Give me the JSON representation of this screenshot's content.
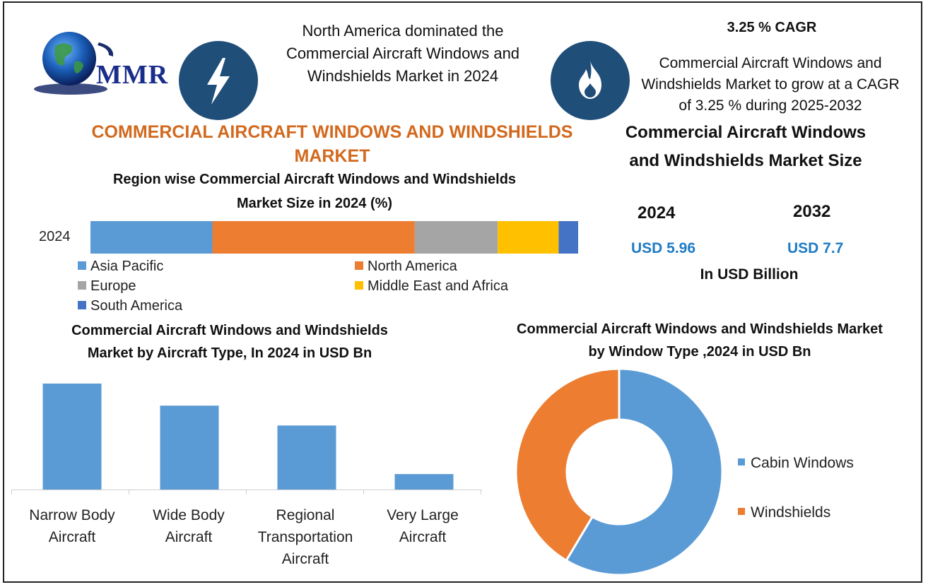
{
  "logo": {
    "text": "MMR",
    "icon": "globe-icon"
  },
  "header": {
    "headline": "North America dominated the Commercial Aircraft Windows and Windshields Market in 2024",
    "bolt_icon": "lightning-bolt-icon",
    "flame_icon": "flame-icon",
    "cagr_title": "3.25 % CAGR",
    "cagr_text": "Commercial Aircraft Windows and Windshields Market to grow at a CAGR of 3.25 % during 2025-2032"
  },
  "main_title": "COMMERCIAL AIRCRAFT WINDOWS AND WINDSHIELDS MARKET",
  "market_size": {
    "title": "Commercial Aircraft Windows and Windshields Market Size",
    "year_a": "2024",
    "year_b": "2032",
    "value_a": "USD 5.96",
    "value_b": "USD 7.7",
    "unit": "In USD Billion"
  },
  "colors": {
    "asia_pacific": "#5b9bd5",
    "north_america": "#ed7d31",
    "europe": "#a5a5a5",
    "mea": "#ffc000",
    "south_america": "#4472c4",
    "bars": "#5b9bd5",
    "cabin": "#5b9bd5",
    "windshields": "#ed7d31"
  },
  "chart_data": [
    {
      "type": "bar",
      "stacked": true,
      "orientation": "horizontal",
      "title": "Region wise Commercial Aircraft Windows and Windshields Market Size in 2024 (%)",
      "categories": [
        "2024"
      ],
      "series": [
        {
          "name": "Asia Pacific",
          "values": [
            25
          ]
        },
        {
          "name": "North America",
          "values": [
            41.5
          ]
        },
        {
          "name": "Europe",
          "values": [
            17
          ]
        },
        {
          "name": "Middle East and Africa",
          "values": [
            12.5
          ]
        },
        {
          "name": "South America",
          "values": [
            4
          ]
        }
      ],
      "legend": "bottom"
    },
    {
      "type": "bar",
      "title": "Commercial Aircraft Windows and Windshields Market  by Aircraft Type, In 2024 in USD Bn",
      "categories": [
        "Narrow Body Aircraft",
        "Wide Body Aircraft",
        "Regional Transportation Aircraft",
        "Very Large Aircraft"
      ],
      "values": [
        2.4,
        1.9,
        1.45,
        0.35
      ],
      "ylim": [
        0,
        2.4
      ]
    },
    {
      "type": "pie",
      "donut": true,
      "title": "Commercial Aircraft Windows and Windshields Market by Window Type ,2024 in USD Bn",
      "categories": [
        "Cabin Windows",
        "Windshields"
      ],
      "values": [
        3.49,
        2.47
      ],
      "legend": "right"
    }
  ]
}
